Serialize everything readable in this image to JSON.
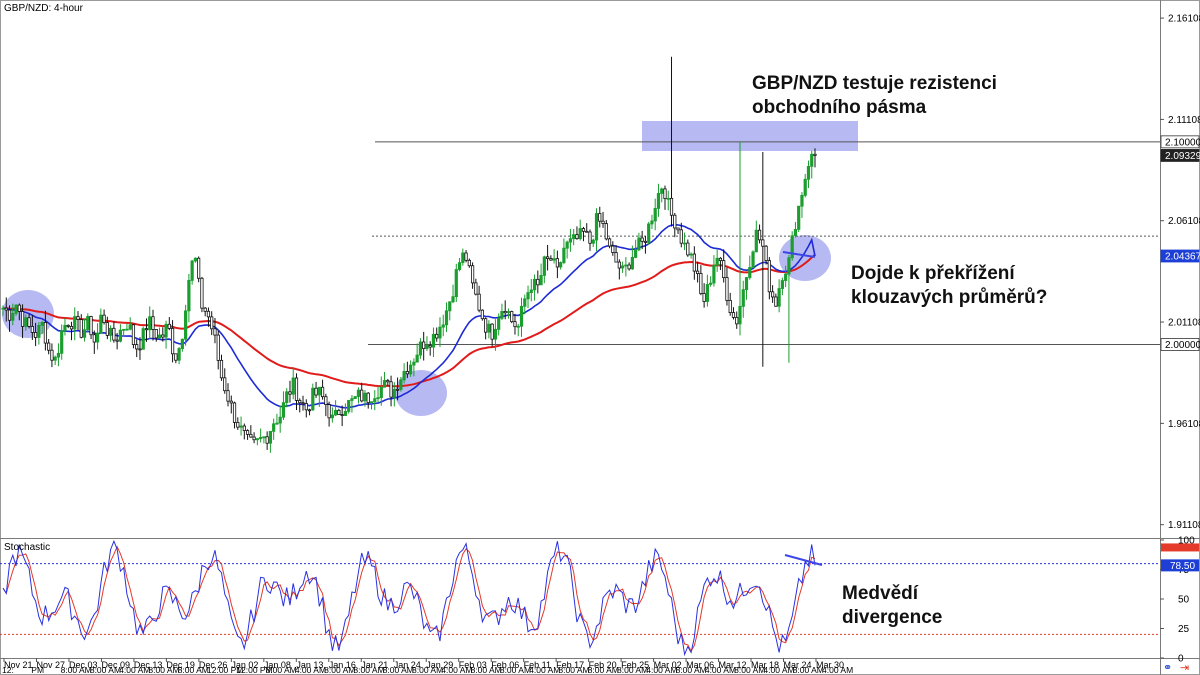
{
  "header": {
    "symbol_label": "GBP/NZD: 4-hour"
  },
  "price_axis": {
    "ticks": [
      "2.16108",
      "2.11108",
      "2.06108",
      "2.01108",
      "1.96108",
      "1.91108"
    ],
    "badges": [
      {
        "label": "2.10000",
        "value": 2.1,
        "style": "white"
      },
      {
        "label": "2.09329",
        "value": 2.09329,
        "style": "dark"
      },
      {
        "label": "2.04367",
        "value": 2.04367,
        "style": "blue"
      },
      {
        "label": "2.00000",
        "value": 2.0,
        "style": "white"
      }
    ]
  },
  "stoch_axis": {
    "title": "Stochastic",
    "ticks": [
      "100",
      "75",
      "50",
      "25",
      "0"
    ],
    "badges": [
      {
        "label": "78.50",
        "value": 78.5,
        "style": "blue"
      }
    ]
  },
  "time_axis": {
    "labels": [
      "Nov 21",
      "Nov 27",
      "Dec 03",
      "Dec 09",
      "Dec 13",
      "Dec 19",
      "Dec 26",
      "Jan 02",
      "Jan 08",
      "Jan 13",
      "Jan 16",
      "Jan 21",
      "Jan 24",
      "Jan 29",
      "Feb 03",
      "Feb 06",
      "Feb 11",
      "Feb 17",
      "Feb 20",
      "Feb 25",
      "Mar 02",
      "Mar 06",
      "Mar 12",
      "Mar 18",
      "Mar 24",
      "Mar 30"
    ],
    "sublabels": [
      "12:",
      "PM",
      "8:00 AM",
      "8:00 AM",
      "4:00 AM",
      "8:00 AM",
      "8:00 AM",
      "12:00 PM",
      "12:00 PM",
      "8:00 AM",
      "4:00 AM",
      "8:00 AM",
      "8:00 AM",
      "8:00 AM",
      "8:00 AM",
      "4:00 AM",
      "8:00 AM",
      "8:00 AM",
      "4:00 AM",
      "8:00 AM",
      "8:00 AM",
      "8:00 AM",
      "4:00 AM",
      "8:00 AM",
      "4:00 AM",
      "8:00 AM",
      "4:00 AM",
      "8:00 AM",
      "4:00 AM"
    ]
  },
  "annotations": {
    "resistance": [
      "GBP/NZD testuje rezistenci",
      "obchodního pásma"
    ],
    "crossover": [
      "Dojde k překřížení",
      "klouzavých průměrů?"
    ],
    "divergence": [
      "Medvědí",
      "divergence"
    ]
  },
  "colors": {
    "bull_candle": "#1b9e2f",
    "bear_candle": "#111111",
    "ma_fast": "#1d2bd6",
    "ma_slow": "#e11a1a",
    "stoch_k": "#2a32e0",
    "stoch_d": "#e33a2a",
    "highlight": "#7b7fea",
    "level_line": "#555555"
  },
  "chart_data": {
    "type": "candlestick",
    "title": "GBP/NZD: 4-hour",
    "ylim": [
      1.905,
      2.17
    ],
    "x": [
      "Nov 21",
      "Nov 27",
      "Dec 03",
      "Dec 09",
      "Dec 13",
      "Dec 19",
      "Dec 26",
      "Jan 02",
      "Jan 08",
      "Jan 13",
      "Jan 16",
      "Jan 21",
      "Jan 24",
      "Jan 29",
      "Feb 03",
      "Feb 06",
      "Feb 11",
      "Feb 17",
      "Feb 20",
      "Feb 25",
      "Mar 02",
      "Mar 06",
      "Mar 12",
      "Mar 18",
      "Mar 24",
      "Mar 30"
    ],
    "close_path": [
      2.018,
      2.015,
      2.02,
      2.012,
      2.008,
      2.005,
      2.01,
      1.996,
      1.992,
      2.008,
      2.012,
      2.01,
      2.006,
      2.011,
      2.0,
      2.016,
      2.005,
      2.002,
      2.008,
      2.011,
      1.998,
      2.002,
      2.012,
      2.006,
      2.003,
      2.01,
      1.993,
      2.001,
      2.03,
      2.045,
      2.02,
      2.015,
      2.004,
      1.985,
      1.975,
      1.965,
      1.958,
      1.952,
      1.95,
      1.953,
      1.955,
      1.962,
      1.965,
      1.975,
      1.98,
      1.972,
      1.968,
      1.975,
      1.976,
      1.97,
      1.962,
      1.968,
      1.97,
      1.972,
      1.975,
      1.973,
      1.976,
      1.978,
      1.98,
      1.976,
      1.983,
      1.988,
      1.992,
      1.998,
      2.002,
      2.003,
      2.008,
      2.015,
      2.025,
      2.04,
      2.045,
      2.03,
      2.02,
      2.01,
      2.005,
      2.015,
      2.02,
      2.012,
      2.008,
      2.022,
      2.03,
      2.028,
      2.04,
      2.042,
      2.035,
      2.048,
      2.05,
      2.052,
      2.055,
      2.05,
      2.062,
      2.058,
      2.045,
      2.04,
      2.035,
      2.042,
      2.048,
      2.05,
      2.06,
      2.072,
      2.08,
      2.065,
      2.06,
      2.05,
      2.045,
      2.035,
      2.02,
      2.03,
      2.045,
      2.035,
      2.02,
      2.01,
      2.025,
      2.04,
      2.055,
      2.05,
      2.03,
      2.02,
      2.035,
      2.04,
      2.06,
      2.075,
      2.09,
      2.094
    ],
    "resistance_level": 2.1,
    "support_level": 2.0,
    "mid_level_dotted": 2.0535,
    "last_price": 2.09329,
    "moving_average_fast_last": 2.04367,
    "stochastic": {
      "ylim": [
        0,
        100
      ],
      "levels": [
        80,
        20
      ],
      "last_value": 78.5
    }
  }
}
